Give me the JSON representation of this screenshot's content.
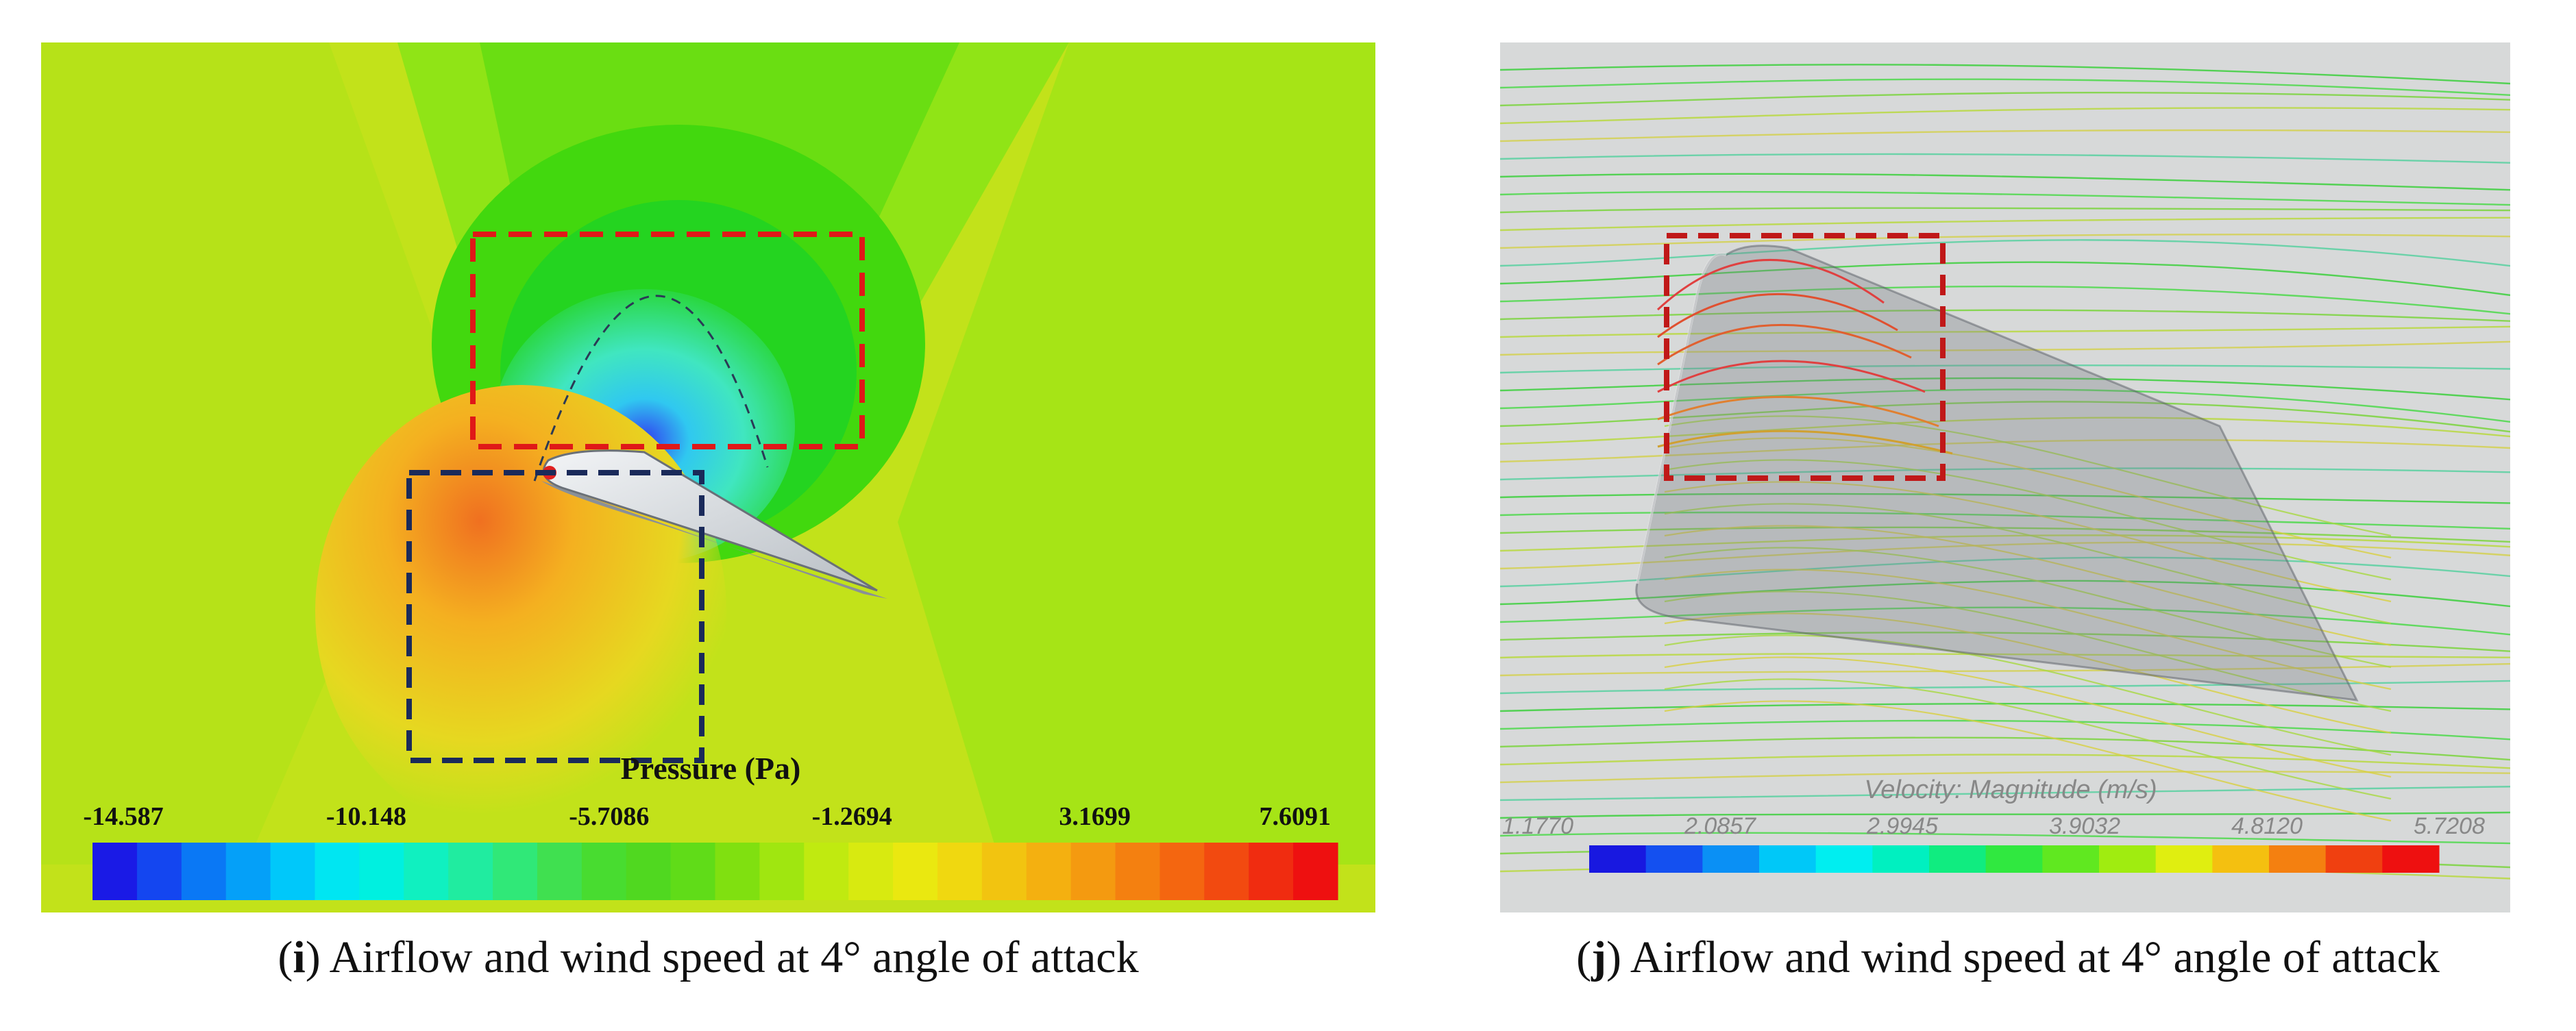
{
  "figure_i": {
    "label": "i",
    "caption": "Airflow and wind speed at 4° angle of attack",
    "colorbar": {
      "title": "Pressure (Pa)",
      "ticks": [
        "-14.587",
        "-10.148",
        "-5.7086",
        "-1.2694",
        "3.1699",
        "7.6091"
      ],
      "colors": [
        "#1a1ae6",
        "#1446f0",
        "#0a78f5",
        "#05a0f8",
        "#00c8fa",
        "#00e6f2",
        "#00f0e0",
        "#10f0c0",
        "#20eca0",
        "#30e878",
        "#40e050",
        "#48dc30",
        "#50d820",
        "#60dc18",
        "#80e010",
        "#a0e610",
        "#c0ea10",
        "#d8ea10",
        "#eae810",
        "#f0d810",
        "#f2c410",
        "#f4b010",
        "#f49a10",
        "#f48010",
        "#f46610",
        "#f24a10",
        "#f02c10",
        "#ee1010"
      ]
    },
    "colors": {
      "background_field": "#c2e21a",
      "red_box": "#e01818",
      "blue_box": "#1a2a5a"
    }
  },
  "figure_j": {
    "label": "j",
    "caption": "Airflow and wind speed at 4° angle of attack",
    "colorbar": {
      "title": "Velocity: Magnitude (m/s)",
      "ticks": [
        "1.1770",
        "2.0857",
        "2.9945",
        "3.9032",
        "4.8120",
        "5.7208"
      ],
      "colors": [
        "#1818e0",
        "#1450f0",
        "#0a90f5",
        "#00c8f8",
        "#00eef0",
        "#00f0c0",
        "#10ec80",
        "#30e840",
        "#60e820",
        "#a0ec10",
        "#e0ee10",
        "#f4c010",
        "#f48010",
        "#f04010",
        "#ee1010"
      ]
    },
    "colors": {
      "background_field": "#d7d9d9",
      "red_box": "#c01818",
      "streamline_main": "#3ccf3c"
    }
  }
}
